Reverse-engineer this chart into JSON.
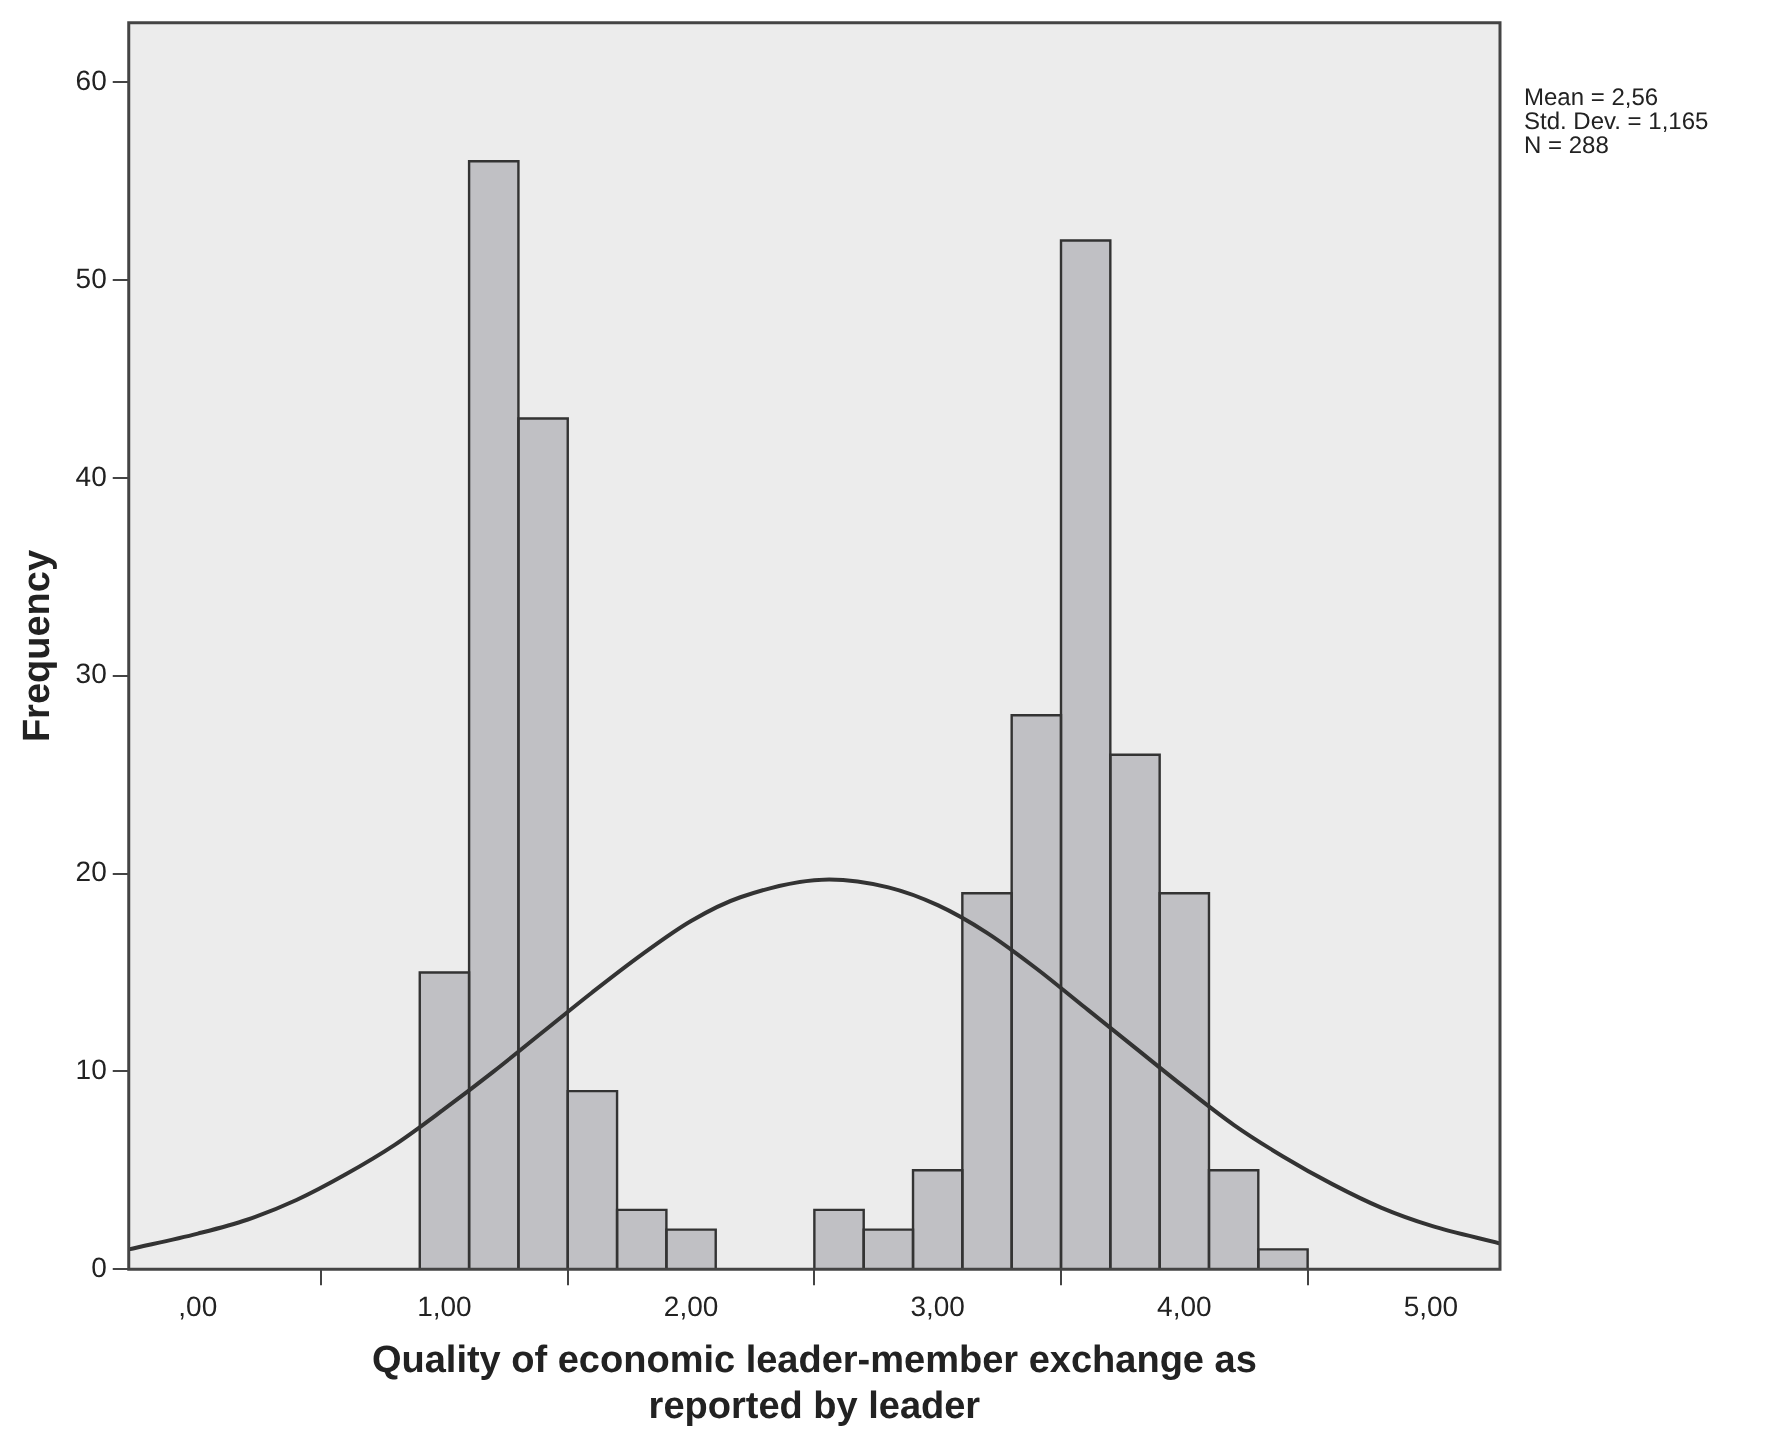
{
  "chart_data": {
    "type": "histogram",
    "xlabel": "Quality of economic leader-member exchange as reported by leader",
    "ylabel": "Frequency",
    "bins": [
      0.9,
      1.1,
      1.3,
      1.5,
      1.7,
      1.9,
      2.1,
      2.3,
      2.5,
      2.7,
      2.9,
      3.1,
      3.3,
      3.5,
      3.7,
      3.9,
      4.1,
      4.3,
      4.5
    ],
    "color": "#c0c0c4",
    "values": [
      15,
      56,
      43,
      9,
      3,
      2,
      0,
      0,
      3,
      2,
      5,
      19,
      28,
      52,
      26,
      19,
      5,
      1
    ],
    "series": [
      {
        "type": "line",
        "color": "#333333",
        "x": [
          -0.28,
          0,
          0.2,
          0.4,
          0.6,
          0.8,
          1.0,
          1.2,
          1.4,
          1.6,
          1.8,
          2.0,
          2.2,
          2.56,
          2.8,
          3.0,
          3.2,
          3.4,
          3.6,
          3.8,
          4.0,
          4.2,
          4.4,
          4.6,
          4.8,
          5.0,
          5.28
        ],
        "values": [
          1.0,
          1.8,
          2.5,
          3.5,
          4.8,
          6.3,
          8.1,
          10.0,
          12.0,
          14.0,
          15.9,
          17.6,
          18.8,
          19.7,
          19.3,
          18.4,
          17.0,
          15.2,
          13.2,
          11.2,
          9.2,
          7.3,
          5.7,
          4.3,
          3.1,
          2.2,
          1.3
        ]
      }
    ],
    "xlim": [
      -0.28,
      5.28
    ],
    "xticks": [
      {
        "value": 0,
        "label": ",00"
      },
      {
        "value": 1,
        "label": "1,00"
      },
      {
        "value": 2,
        "label": "2,00"
      },
      {
        "value": 3,
        "label": "3,00"
      },
      {
        "value": 4,
        "label": "4,00"
      },
      {
        "value": 5,
        "label": "5,00"
      }
    ],
    "ylim": [
      0,
      63
    ],
    "yticks": [
      0,
      10,
      20,
      30,
      40,
      50,
      60
    ],
    "grid": false,
    "legend": false,
    "annotations": [
      "Mean = 2,56",
      "Std. Dev. = 1,165",
      "N = 288"
    ]
  }
}
